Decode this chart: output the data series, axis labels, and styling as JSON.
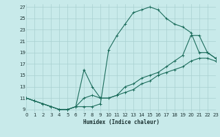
{
  "xlabel": "Humidex (Indice chaleur)",
  "bg_color": "#c8eaea",
  "grid_color": "#a8d0d0",
  "line_color": "#1a6b5a",
  "xlim": [
    0,
    23
  ],
  "ylim": [
    8.5,
    27.5
  ],
  "xticks": [
    0,
    1,
    2,
    3,
    4,
    5,
    6,
    7,
    8,
    9,
    10,
    11,
    12,
    13,
    14,
    15,
    16,
    17,
    18,
    19,
    20,
    21,
    22,
    23
  ],
  "yticks": [
    9,
    11,
    13,
    15,
    17,
    19,
    21,
    23,
    25,
    27
  ],
  "line1_x": [
    0,
    1,
    2,
    3,
    4,
    5,
    6,
    7,
    8,
    9,
    10,
    11,
    12,
    13,
    14,
    15,
    16,
    17,
    18,
    19,
    20,
    21,
    22,
    23
  ],
  "line1_y": [
    11,
    10.5,
    10,
    9.5,
    9,
    9,
    9.5,
    9.5,
    9.5,
    10,
    19.5,
    22,
    24,
    26,
    26.5,
    27,
    26.5,
    25,
    24,
    23.5,
    22.5,
    19,
    19,
    18
  ],
  "line2_x": [
    0,
    1,
    2,
    3,
    4,
    5,
    6,
    7,
    8,
    9,
    10,
    11,
    12,
    13,
    14,
    15,
    16,
    17,
    18,
    19,
    20,
    21,
    22,
    23
  ],
  "line2_y": [
    11,
    10.5,
    10,
    9.5,
    9,
    9,
    9.5,
    16,
    13,
    11,
    11,
    11.5,
    13,
    13.5,
    14.5,
    15,
    15.5,
    16.5,
    17.5,
    18.5,
    22,
    22,
    19,
    18
  ],
  "line3_x": [
    0,
    1,
    2,
    3,
    4,
    5,
    6,
    7,
    8,
    9,
    10,
    11,
    12,
    13,
    14,
    15,
    16,
    17,
    18,
    19,
    20,
    21,
    22,
    23
  ],
  "line3_y": [
    11,
    10.5,
    10,
    9.5,
    9,
    9,
    9.5,
    11,
    11.5,
    11,
    11,
    11.5,
    12,
    12.5,
    13.5,
    14,
    15,
    15.5,
    16,
    16.5,
    17.5,
    18,
    18,
    17.5
  ]
}
